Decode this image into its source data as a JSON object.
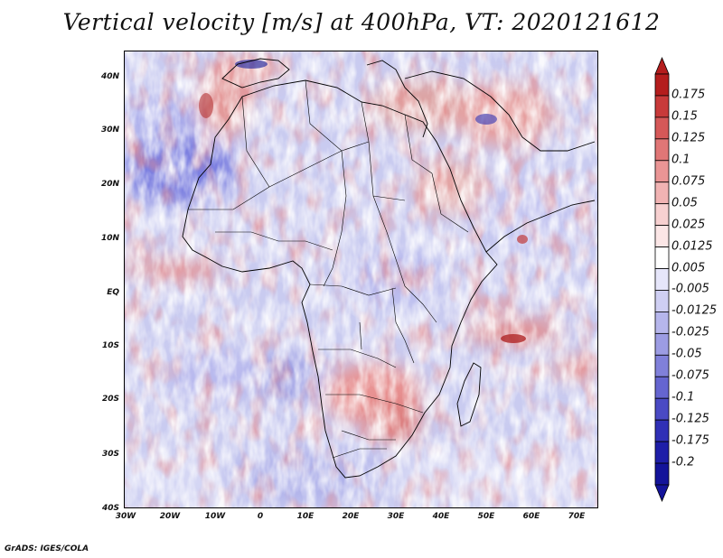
{
  "title": "Vertical velocity [m/s] at 400hPa, VT: 2020121612",
  "footer": "GrADS: IGES/COLA",
  "map": {
    "variable": "Vertical velocity",
    "units": "m/s",
    "level": "400hPa",
    "valid_time": "2020121612",
    "lon_range": [
      -30,
      75
    ],
    "lat_range": [
      -40,
      45
    ],
    "lat_ticks": [
      "40N",
      "30N",
      "20N",
      "10N",
      "EQ",
      "10S",
      "20S",
      "30S",
      "40S"
    ],
    "lon_ticks": [
      "30W",
      "20W",
      "10W",
      "0",
      "10E",
      "20E",
      "30E",
      "40E",
      "50E",
      "60E",
      "70E"
    ]
  },
  "colorbar": {
    "labels": [
      "0.175",
      "0.15",
      "0.125",
      "0.1",
      "0.075",
      "0.05",
      "0.025",
      "0.0125",
      "0.005",
      "-0.005",
      "-0.0125",
      "-0.025",
      "-0.05",
      "-0.075",
      "-0.1",
      "-0.125",
      "-0.175",
      "-0.2"
    ],
    "colors": [
      "#b41d1d",
      "#c83a3a",
      "#d55858",
      "#e07676",
      "#ea9595",
      "#f1b3b3",
      "#f7d0d0",
      "#fbe6e6",
      "#ffffff",
      "#e6e6fa",
      "#cfcff3",
      "#b6b6ec",
      "#9c9ce3",
      "#8080da",
      "#6565d0",
      "#4a4ac4",
      "#3030b6",
      "#1e1ea8",
      "#13139a"
    ]
  }
}
